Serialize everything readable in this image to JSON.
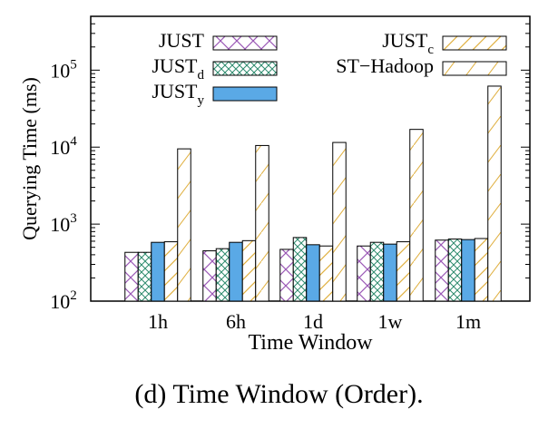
{
  "caption": "(d) Time Window (Order).",
  "chart_data": {
    "type": "bar",
    "xlabel": "Time Window",
    "ylabel": "Querying Time (ms)",
    "yscale": "log",
    "ylim": [
      100,
      500000
    ],
    "yticks": [
      {
        "base": "10",
        "exp": "2"
      },
      {
        "base": "10",
        "exp": "3"
      },
      {
        "base": "10",
        "exp": "4"
      },
      {
        "base": "10",
        "exp": "5"
      }
    ],
    "categories": [
      "1h",
      "6h",
      "1d",
      "1w",
      "1m"
    ],
    "legend_position": "top",
    "series": [
      {
        "name": "JUST",
        "name_main": "JUST",
        "name_sub": "",
        "pattern": "cross",
        "color": "#9b59b6",
        "values": [
          430,
          450,
          470,
          520,
          620
        ]
      },
      {
        "name": "JUSTd",
        "name_main": "JUST",
        "name_sub": "d",
        "pattern": "crosshatch",
        "color": "#2e8b6e",
        "values": [
          430,
          480,
          670,
          580,
          640
        ]
      },
      {
        "name": "JUSTy",
        "name_main": "JUST",
        "name_sub": "y",
        "pattern": "solid",
        "color": "#5aa9e6",
        "values": [
          580,
          580,
          540,
          550,
          630
        ]
      },
      {
        "name": "JUSTc",
        "name_main": "JUST",
        "name_sub": "c",
        "pattern": "diag",
        "color": "#e0b040",
        "values": [
          590,
          610,
          520,
          590,
          650
        ]
      },
      {
        "name": "ST-Hadoop",
        "name_main": "ST−Hadoop",
        "name_sub": "",
        "pattern": "diag-light",
        "color": "#e0b040",
        "values": [
          9500,
          10500,
          11500,
          17000,
          62000
        ]
      }
    ]
  }
}
